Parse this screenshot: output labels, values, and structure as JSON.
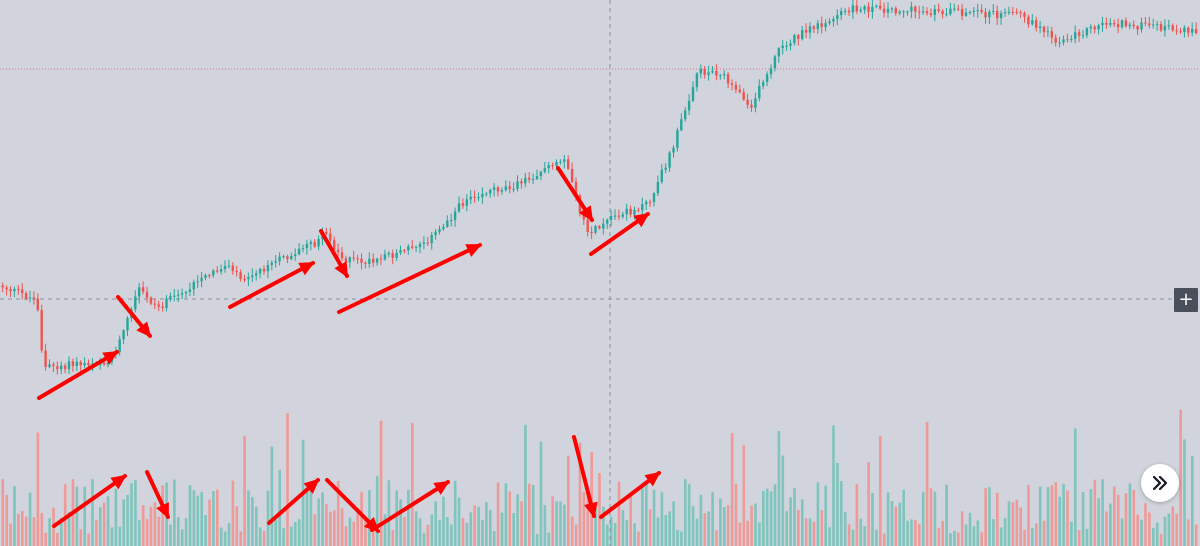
{
  "colors": {
    "background": "#d1d4dc",
    "up": "#26a69a",
    "down": "#ef5350",
    "volume_up": "#7fc4bd",
    "volume_down": "#ee9a99",
    "crosshair": "#8a8f9c",
    "price_line": "#e4717a",
    "arrow": "#ff0000"
  },
  "controls": {
    "crosshair_button_icon": "plus-icon",
    "scroll_button_icon": "double-chevron-right-icon"
  },
  "chart_data": {
    "type": "candlestick",
    "description_free": true,
    "axis_labels_visible": false,
    "panes": [
      "price",
      "volume"
    ],
    "price_trend_shape": [
      [
        0,
        0.74
      ],
      [
        0.03,
        0.78
      ],
      [
        0.035,
        0.96
      ],
      [
        0.09,
        0.94
      ],
      [
        0.1,
        0.88
      ],
      [
        0.115,
        0.75
      ],
      [
        0.13,
        0.8
      ],
      [
        0.19,
        0.68
      ],
      [
        0.2,
        0.72
      ],
      [
        0.26,
        0.63
      ],
      [
        0.27,
        0.6
      ],
      [
        0.285,
        0.67
      ],
      [
        0.31,
        0.68
      ],
      [
        0.34,
        0.64
      ],
      [
        0.36,
        0.61
      ],
      [
        0.39,
        0.5
      ],
      [
        0.43,
        0.47
      ],
      [
        0.46,
        0.42
      ],
      [
        0.47,
        0.41
      ],
      [
        0.48,
        0.52
      ],
      [
        0.49,
        0.6
      ],
      [
        0.51,
        0.56
      ],
      [
        0.54,
        0.52
      ],
      [
        0.56,
        0.37
      ],
      [
        0.58,
        0.17
      ],
      [
        0.6,
        0.17
      ],
      [
        0.625,
        0.26
      ],
      [
        0.65,
        0.1
      ],
      [
        0.69,
        0.03
      ],
      [
        0.71,
        0.0
      ],
      [
        0.85,
        0.02
      ],
      [
        0.88,
        0.09
      ],
      [
        0.92,
        0.04
      ],
      [
        1.0,
        0.06
      ]
    ],
    "arrows": [
      {
        "pane": "price",
        "direction": "up"
      },
      {
        "pane": "price",
        "direction": "down"
      },
      {
        "pane": "price",
        "direction": "up"
      },
      {
        "pane": "price",
        "direction": "down"
      },
      {
        "pane": "price",
        "direction": "up"
      },
      {
        "pane": "price",
        "direction": "down"
      },
      {
        "pane": "price",
        "direction": "up"
      },
      {
        "pane": "volume",
        "direction": "up"
      },
      {
        "pane": "volume",
        "direction": "down"
      },
      {
        "pane": "volume",
        "direction": "up"
      },
      {
        "pane": "volume",
        "direction": "down"
      },
      {
        "pane": "volume",
        "direction": "up"
      },
      {
        "pane": "volume",
        "direction": "down"
      },
      {
        "pane": "volume",
        "direction": "up"
      }
    ]
  }
}
